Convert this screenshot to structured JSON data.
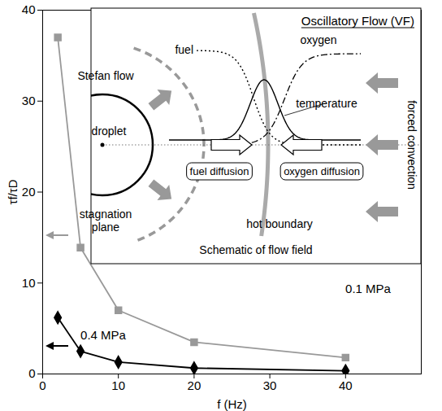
{
  "chart_data": {
    "type": "line",
    "x_label": "f (Hz)",
    "y_label": "τf/τD",
    "x": [
      2,
      5,
      10,
      20,
      40
    ],
    "xlim": [
      0,
      50
    ],
    "xticks": [
      0,
      10,
      20,
      30,
      40
    ],
    "ylim": [
      0,
      40
    ],
    "yticks": [
      0,
      10,
      20,
      30,
      40
    ],
    "grid": false,
    "series": [
      {
        "name": "0.1 MPa",
        "color": "#999999",
        "marker": "square",
        "line_style": "solid",
        "values": [
          37,
          13.9,
          7,
          3.5,
          1.8
        ]
      },
      {
        "name": "0.4 MPa",
        "color": "#000000",
        "marker": "diamond",
        "line_style": "solid",
        "values": [
          6.2,
          2.5,
          1.3,
          0.65,
          0.35
        ]
      }
    ],
    "inset": {
      "title": "Oscillatory Flow (VF)",
      "caption": "Schematic of flow field",
      "fuel": "fuel",
      "oxygen": "oxygen",
      "temperature": "temperature",
      "stefan_flow": "Stefan flow",
      "droplet": "droplet",
      "fuel_diffusion": "fuel diffusion",
      "oxygen_diffusion": "oxygen diffusion",
      "forced_convection": "forced convection",
      "stagnation_plane": "stagnation plane",
      "hot_boundary": "hot boundary"
    }
  }
}
